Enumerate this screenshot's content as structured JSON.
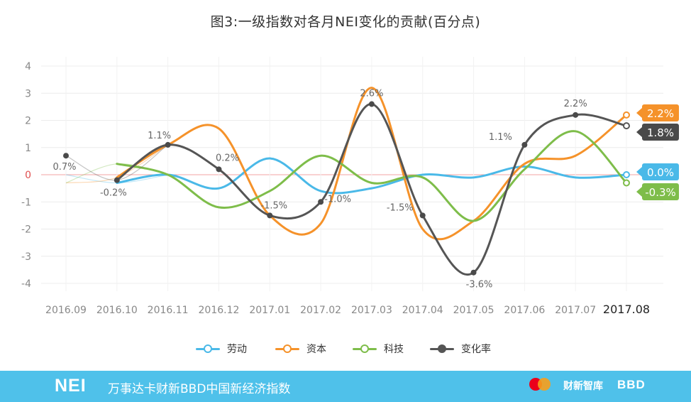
{
  "chart_data": {
    "type": "line",
    "title": "图3:一级指数对各月NEI变化的贡献(百分点)",
    "categories": [
      "2016.09",
      "2016.10",
      "2016.11",
      "2016.12",
      "2017.01",
      "2017.02",
      "2017.03",
      "2017.04",
      "2017.05",
      "2017.06",
      "2017.07",
      "2017.08"
    ],
    "ylim": [
      -4,
      4
    ],
    "yticks": [
      "4",
      "3",
      "2",
      "1",
      "0",
      "-1",
      "-2",
      "-3",
      "-4"
    ],
    "grid": true,
    "legend_position": "bottom",
    "series": [
      {
        "name": "劳动",
        "color": "#4ab9e8",
        "values": [
          0.0,
          -0.3,
          0.0,
          -0.5,
          0.6,
          -0.6,
          -0.5,
          0.0,
          -0.1,
          0.3,
          -0.1,
          0.0
        ]
      },
      {
        "name": "资本",
        "color": "#f5922a",
        "values": [
          -0.3,
          -0.1,
          1.1,
          1.7,
          -1.5,
          -1.8,
          3.2,
          -2.0,
          -1.7,
          0.4,
          0.7,
          2.2
        ]
      },
      {
        "name": "科技",
        "color": "#7ebd4a",
        "values": [
          -0.3,
          0.4,
          0.0,
          -1.2,
          -0.6,
          0.7,
          -0.3,
          -0.1,
          -1.7,
          0.2,
          1.6,
          -0.3
        ]
      },
      {
        "name": "变化率",
        "color": "#555555",
        "values": [
          0.7,
          -0.2,
          1.1,
          0.2,
          -1.5,
          -1.0,
          2.6,
          -1.5,
          -3.6,
          1.1,
          2.2,
          1.8
        ]
      }
    ],
    "point_labels": [
      "0.7%",
      "-0.2%",
      "1.1%",
      "0.2%",
      "-1.5%",
      "-1.0%",
      "2.6%",
      "-1.5%",
      "-3.6%",
      "1.1%",
      "2.2%",
      ""
    ],
    "end_badges": [
      {
        "series": "资本",
        "text": "2.2%",
        "color": "#f5922a"
      },
      {
        "series": "变化率",
        "text": "1.8%",
        "color": "#4a4a4a"
      },
      {
        "series": "劳动",
        "text": "0.0%",
        "color": "#4ab9e8"
      },
      {
        "series": "科技",
        "text": "-0.3%",
        "color": "#7ebd4a"
      }
    ]
  },
  "legend": [
    {
      "label": "劳动",
      "color": "#4ab9e8"
    },
    {
      "label": "资本",
      "color": "#f5922a"
    },
    {
      "label": "科技",
      "color": "#7ebd4a"
    },
    {
      "label": "变化率",
      "color": "#555555"
    }
  ],
  "footer": {
    "logo": "NEI",
    "text": "万事达卡财新BBD中国新经济指数",
    "caixin_logo": "财新智库",
    "bbd_logo": "BBD",
    "background": "#4fc1ea"
  }
}
